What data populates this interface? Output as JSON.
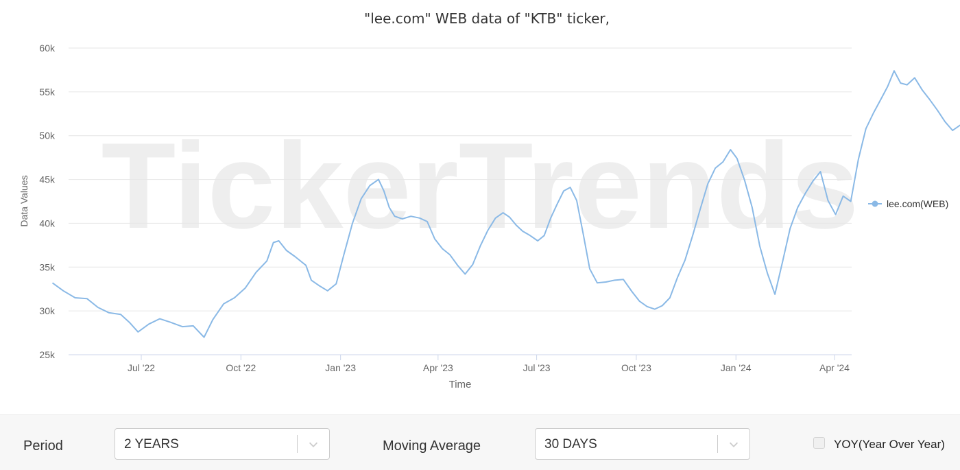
{
  "chart_data": {
    "type": "line",
    "title": "\"lee.com\" WEB data of \"KTB\" ticker,",
    "watermark": "TickerTrends",
    "xlabel": "Time",
    "ylabel": "Data Values",
    "ylim": [
      25000,
      60000
    ],
    "y_ticks": [
      {
        "value": 25000,
        "label": "25k"
      },
      {
        "value": 30000,
        "label": "30k"
      },
      {
        "value": 35000,
        "label": "35k"
      },
      {
        "value": 40000,
        "label": "40k"
      },
      {
        "value": 45000,
        "label": "45k"
      },
      {
        "value": 50000,
        "label": "50k"
      },
      {
        "value": 55000,
        "label": "55k"
      },
      {
        "value": 60000,
        "label": "60k"
      }
    ],
    "x_ticks": [
      {
        "date": "2022-07-01",
        "label": "Jul '22"
      },
      {
        "date": "2022-10-01",
        "label": "Oct '22"
      },
      {
        "date": "2023-01-01",
        "label": "Jan '23"
      },
      {
        "date": "2023-04-01",
        "label": "Apr '23"
      },
      {
        "date": "2023-07-01",
        "label": "Jul '23"
      },
      {
        "date": "2023-10-01",
        "label": "Oct '23"
      },
      {
        "date": "2024-01-01",
        "label": "Jan '24"
      },
      {
        "date": "2024-04-01",
        "label": "Apr '24"
      }
    ],
    "grid": true,
    "legend": "right",
    "series": [
      {
        "name": "lee.com(WEB)",
        "color": "#8ab9e6",
        "points": [
          [
            "2022-04-10",
            33200
          ],
          [
            "2022-04-20",
            32300
          ],
          [
            "2022-05-01",
            31500
          ],
          [
            "2022-05-12",
            31400
          ],
          [
            "2022-05-22",
            30400
          ],
          [
            "2022-06-01",
            29800
          ],
          [
            "2022-06-12",
            29600
          ],
          [
            "2022-06-20",
            28700
          ],
          [
            "2022-06-28",
            27600
          ],
          [
            "2022-07-08",
            28500
          ],
          [
            "2022-07-18",
            29100
          ],
          [
            "2022-07-28",
            28700
          ],
          [
            "2022-08-08",
            28200
          ],
          [
            "2022-08-18",
            28300
          ],
          [
            "2022-08-28",
            27000
          ],
          [
            "2022-09-05",
            29000
          ],
          [
            "2022-09-15",
            30800
          ],
          [
            "2022-09-25",
            31500
          ],
          [
            "2022-10-05",
            32600
          ],
          [
            "2022-10-15",
            34400
          ],
          [
            "2022-10-25",
            35700
          ],
          [
            "2022-10-31",
            37800
          ],
          [
            "2022-11-05",
            38000
          ],
          [
            "2022-11-12",
            36900
          ],
          [
            "2022-11-20",
            36200
          ],
          [
            "2022-11-30",
            35200
          ],
          [
            "2022-12-05",
            33500
          ],
          [
            "2022-12-12",
            32900
          ],
          [
            "2022-12-20",
            32300
          ],
          [
            "2022-12-28",
            33100
          ],
          [
            "2023-01-04",
            36400
          ],
          [
            "2023-01-12",
            40000
          ],
          [
            "2023-01-20",
            42800
          ],
          [
            "2023-01-28",
            44300
          ],
          [
            "2023-02-05",
            45000
          ],
          [
            "2023-02-10",
            43700
          ],
          [
            "2023-02-15",
            41800
          ],
          [
            "2023-02-20",
            40800
          ],
          [
            "2023-02-27",
            40500
          ],
          [
            "2023-03-07",
            40800
          ],
          [
            "2023-03-15",
            40600
          ],
          [
            "2023-03-22",
            40200
          ],
          [
            "2023-03-29",
            38200
          ],
          [
            "2023-04-05",
            37100
          ],
          [
            "2023-04-12",
            36400
          ],
          [
            "2023-04-19",
            35200
          ],
          [
            "2023-04-26",
            34200
          ],
          [
            "2023-05-03",
            35300
          ],
          [
            "2023-05-10",
            37400
          ],
          [
            "2023-05-17",
            39200
          ],
          [
            "2023-05-24",
            40600
          ],
          [
            "2023-05-31",
            41200
          ],
          [
            "2023-06-06",
            40700
          ],
          [
            "2023-06-12",
            39800
          ],
          [
            "2023-06-18",
            39100
          ],
          [
            "2023-06-25",
            38600
          ],
          [
            "2023-07-02",
            38000
          ],
          [
            "2023-07-08",
            38600
          ],
          [
            "2023-07-14",
            40600
          ],
          [
            "2023-07-20",
            42200
          ],
          [
            "2023-07-26",
            43700
          ],
          [
            "2023-08-01",
            44100
          ],
          [
            "2023-08-07",
            42600
          ],
          [
            "2023-08-13",
            38800
          ],
          [
            "2023-08-19",
            34800
          ],
          [
            "2023-08-26",
            33200
          ],
          [
            "2023-09-03",
            33300
          ],
          [
            "2023-09-11",
            33500
          ],
          [
            "2023-09-19",
            33600
          ],
          [
            "2023-09-27",
            32200
          ],
          [
            "2023-10-04",
            31100
          ],
          [
            "2023-10-11",
            30500
          ],
          [
            "2023-10-18",
            30200
          ],
          [
            "2023-10-25",
            30600
          ],
          [
            "2023-11-01",
            31500
          ],
          [
            "2023-11-08",
            33800
          ],
          [
            "2023-11-15",
            35800
          ],
          [
            "2023-11-22",
            38600
          ],
          [
            "2023-11-29",
            41600
          ],
          [
            "2023-12-06",
            44500
          ],
          [
            "2023-12-13",
            46300
          ],
          [
            "2023-12-20",
            47000
          ],
          [
            "2023-12-27",
            48400
          ],
          [
            "2024-01-02",
            47400
          ],
          [
            "2024-01-09",
            44900
          ],
          [
            "2024-01-16",
            41800
          ],
          [
            "2024-01-23",
            37400
          ],
          [
            "2024-01-30",
            34300
          ],
          [
            "2024-02-06",
            31900
          ],
          [
            "2024-02-13",
            35600
          ],
          [
            "2024-02-20",
            39400
          ],
          [
            "2024-02-27",
            41800
          ],
          [
            "2024-03-05",
            43400
          ],
          [
            "2024-03-12",
            44800
          ],
          [
            "2024-03-19",
            45900
          ],
          [
            "2024-03-26",
            42600
          ],
          [
            "2024-04-02",
            41000
          ],
          [
            "2024-04-09",
            43100
          ],
          [
            "2024-04-16",
            42500
          ],
          [
            "2024-04-23",
            47300
          ],
          [
            "2024-04-30",
            50800
          ],
          [
            "2024-05-07",
            52600
          ],
          [
            "2024-05-14",
            54200
          ],
          [
            "2024-05-20",
            55600
          ],
          [
            "2024-05-26",
            57400
          ],
          [
            "2024-06-01",
            56000
          ],
          [
            "2024-06-07",
            55800
          ],
          [
            "2024-06-14",
            56600
          ],
          [
            "2024-06-21",
            55200
          ],
          [
            "2024-06-28",
            54100
          ],
          [
            "2024-07-05",
            52900
          ],
          [
            "2024-07-12",
            51600
          ],
          [
            "2024-07-19",
            50600
          ],
          [
            "2024-07-26",
            51200
          ],
          [
            "2024-08-01",
            51400
          ],
          [
            "2024-08-06",
            50800
          ]
        ]
      }
    ]
  },
  "controls": {
    "period_label": "Period",
    "period_value": "2 YEARS",
    "moving_average_label": "Moving Average",
    "moving_average_value": "30 DAYS",
    "yoy_label": "YOY(Year Over Year)",
    "yoy_checked": false
  }
}
